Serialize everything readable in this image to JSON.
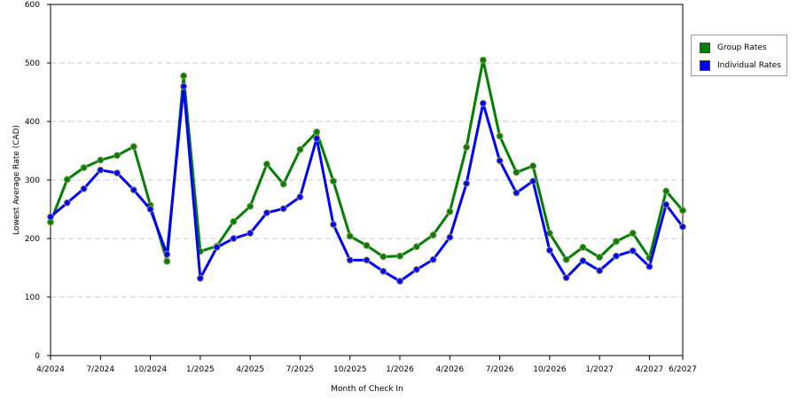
{
  "chart_data": {
    "type": "line",
    "xlabel": "Month of Check In",
    "ylabel": "Lowest Average Rate (CAD)",
    "ylim": [
      0,
      600
    ],
    "yticks": [
      0,
      100,
      200,
      300,
      400,
      500,
      600
    ],
    "x": [
      "4/2024",
      "5/2024",
      "6/2024",
      "7/2024",
      "8/2024",
      "9/2024",
      "10/2024",
      "11/2024",
      "12/2024",
      "1/2025",
      "2/2025",
      "3/2025",
      "4/2025",
      "5/2025",
      "6/2025",
      "7/2025",
      "8/2025",
      "9/2025",
      "10/2025",
      "11/2025",
      "12/2025",
      "1/2026",
      "2/2026",
      "3/2026",
      "4/2026",
      "5/2026",
      "6/2026",
      "7/2026",
      "8/2026",
      "9/2026",
      "10/2026",
      "11/2026",
      "12/2026",
      "1/2027",
      "2/2027",
      "3/2027",
      "4/2027",
      "5/2027",
      "6/2027"
    ],
    "xtick_labels": [
      "4/2024",
      "7/2024",
      "10/2024",
      "1/2025",
      "4/2025",
      "7/2025",
      "10/2025",
      "1/2026",
      "4/2026",
      "7/2026",
      "10/2026",
      "1/2027",
      "4/2027",
      "6/2027"
    ],
    "grid": true,
    "legend_position": "right",
    "series": [
      {
        "name": "Group Rates",
        "color": "#008000",
        "values": [
          228,
          301,
          321,
          334,
          342,
          357,
          257,
          161,
          478,
          178,
          187,
          229,
          255,
          327,
          293,
          352,
          382,
          298,
          204,
          188,
          169,
          170,
          186,
          206,
          246,
          356,
          505,
          375,
          313,
          324,
          209,
          164,
          185,
          168,
          195,
          209,
          167,
          281,
          248
        ]
      },
      {
        "name": "Individual Rates",
        "color": "#0000ff",
        "values": [
          237,
          261,
          285,
          317,
          312,
          283,
          250,
          173,
          460,
          132,
          185,
          200,
          209,
          244,
          251,
          271,
          371,
          224,
          163,
          163,
          144,
          127,
          147,
          164,
          202,
          294,
          431,
          333,
          278,
          298,
          180,
          133,
          162,
          145,
          170,
          179,
          152,
          258,
          220
        ]
      }
    ]
  }
}
